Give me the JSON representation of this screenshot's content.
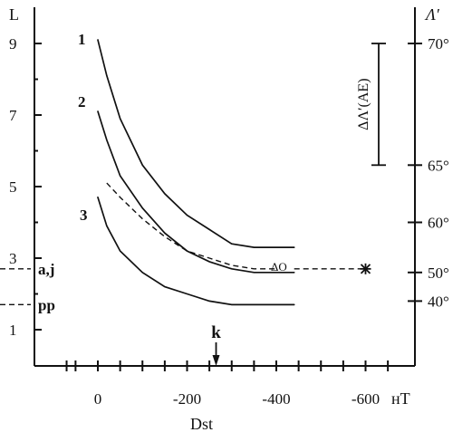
{
  "chart_data": {
    "type": "line",
    "xlabel": "Dst",
    "x_unit": "нТ",
    "left_axis_label": "L",
    "right_axis_label": "Λ′",
    "x_ticks": [
      {
        "value": 0,
        "label": "0"
      },
      {
        "value": -200,
        "label": "-200"
      },
      {
        "value": -400,
        "label": "-400"
      },
      {
        "value": -600,
        "label": "-600"
      }
    ],
    "xlim": [
      70,
      -690
    ],
    "ylim": [
      0,
      10
    ],
    "left_ticks": [
      {
        "value": 1,
        "label": "1"
      },
      {
        "value": 3,
        "label": "3"
      },
      {
        "value": 5,
        "label": "5"
      },
      {
        "value": 7,
        "label": "7"
      },
      {
        "value": 9,
        "label": "9"
      }
    ],
    "right_ticks": [
      {
        "L": 9.0,
        "label": "70°"
      },
      {
        "L": 5.6,
        "label": "65°"
      },
      {
        "L": 4.0,
        "label": "60°"
      },
      {
        "L": 2.6,
        "label": "50°"
      },
      {
        "L": 1.8,
        "label": "40°"
      }
    ],
    "series": [
      {
        "name": "1",
        "style": "solid",
        "x": [
          0,
          -20,
          -50,
          -100,
          -150,
          -200,
          -250,
          -300,
          -350,
          -400,
          -440
        ],
        "y": [
          9.1,
          8.1,
          6.9,
          5.6,
          4.8,
          4.2,
          3.8,
          3.4,
          3.3,
          3.3,
          3.3
        ]
      },
      {
        "name": "2",
        "style": "solid",
        "x": [
          0,
          -20,
          -50,
          -100,
          -150,
          -200,
          -250,
          -300,
          -350,
          -400,
          -440
        ],
        "y": [
          7.1,
          6.3,
          5.3,
          4.4,
          3.7,
          3.2,
          2.9,
          2.7,
          2.6,
          2.6,
          2.6
        ]
      },
      {
        "name": "2",
        "style": "dashed",
        "x": [
          -20,
          -50,
          -100,
          -150,
          -200,
          -250,
          -300,
          -350,
          -400
        ],
        "y": [
          5.1,
          4.7,
          4.1,
          3.6,
          3.2,
          3.0,
          2.8,
          2.7,
          2.7
        ]
      },
      {
        "name": "3",
        "style": "solid",
        "x": [
          0,
          -20,
          -50,
          -100,
          -150,
          -200,
          -250,
          -300,
          -350,
          -400,
          -440
        ],
        "y": [
          4.7,
          3.9,
          3.2,
          2.6,
          2.2,
          2.0,
          1.8,
          1.7,
          1.7,
          1.7,
          1.7
        ]
      }
    ],
    "reference_lines": [
      {
        "label": "a,j",
        "L": 2.7
      },
      {
        "label": "pp",
        "L": 1.7
      }
    ],
    "annotations": {
      "k_label": "k",
      "k_x": -265,
      "star_x": -600,
      "star_y": 2.7,
      "markers_text": "ΔO",
      "markers_x": -400,
      "markers_y": 2.8,
      "range_bar_label": "ΔΛ′(AE)",
      "range_bar_top_L": 9.0,
      "range_bar_bottom_L": 5.6
    }
  }
}
